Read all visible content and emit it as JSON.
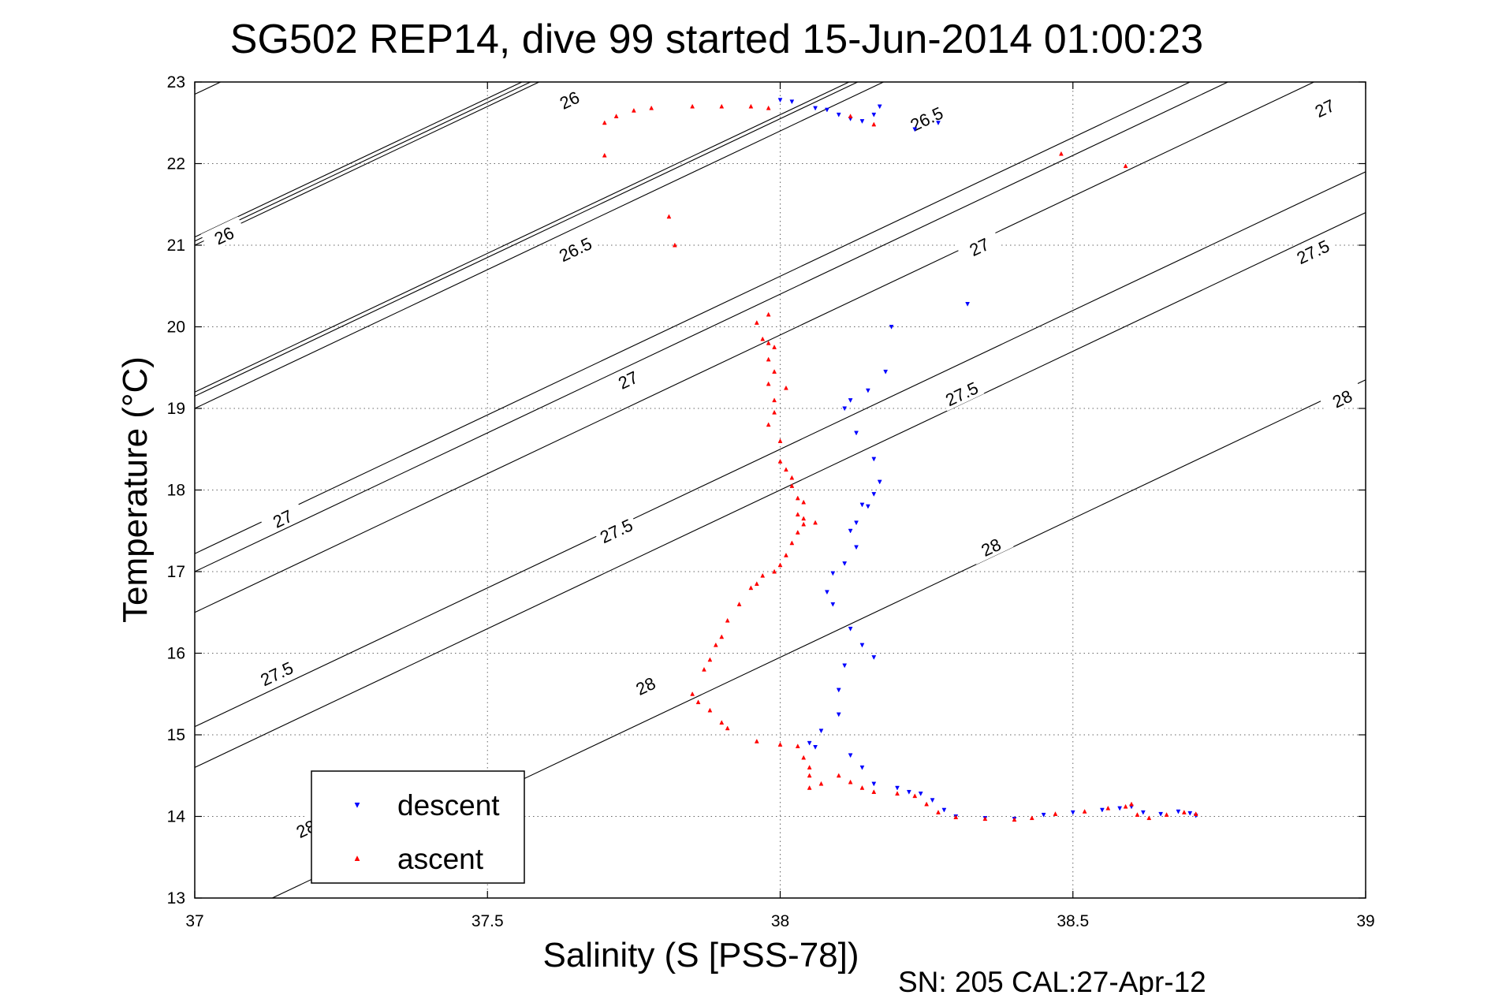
{
  "chart_data": {
    "type": "scatter",
    "title": "SG502 REP14, dive 99 started 15-Jun-2014 01:00:23",
    "xlabel": "Salinity (S [PSS-78])",
    "ylabel": "Temperature (°C)",
    "xlim": [
      37,
      39
    ],
    "ylim": [
      13,
      23
    ],
    "xticks": [
      "37",
      "37.5",
      "38",
      "38.5",
      "39"
    ],
    "yticks": [
      "13",
      "14",
      "15",
      "16",
      "17",
      "18",
      "19",
      "20",
      "21",
      "22",
      "23"
    ],
    "grid": true,
    "legend_position": "bottom-left",
    "footnote": "SN: 205  CAL:27-Apr-12",
    "contours": [
      {
        "value": 26.0,
        "label": "26"
      },
      {
        "value": 26.5,
        "label": "26.5"
      },
      {
        "value": 27.0,
        "label": "27"
      },
      {
        "value": 27.5,
        "label": "27.5"
      },
      {
        "value": 28.0,
        "label": "28"
      }
    ],
    "contour_labels": [
      {
        "text": "26",
        "s": 37.64,
        "t": 22.78
      },
      {
        "text": "26",
        "s": 37.05,
        "t": 21.12
      },
      {
        "text": "26.5",
        "s": 38.25,
        "t": 22.55
      },
      {
        "text": "26.5",
        "s": 37.65,
        "t": 20.95
      },
      {
        "text": "27",
        "s": 38.93,
        "t": 22.68
      },
      {
        "text": "27",
        "s": 38.34,
        "t": 20.98
      },
      {
        "text": "27",
        "s": 37.74,
        "t": 19.35
      },
      {
        "text": "27",
        "s": 37.15,
        "t": 17.65
      },
      {
        "text": "27.5",
        "s": 38.91,
        "t": 20.92
      },
      {
        "text": "27.5",
        "s": 38.31,
        "t": 19.18
      },
      {
        "text": "27.5",
        "s": 37.72,
        "t": 17.5
      },
      {
        "text": "27.5",
        "s": 37.14,
        "t": 15.75
      },
      {
        "text": "28",
        "s": 38.96,
        "t": 19.12
      },
      {
        "text": "28",
        "s": 38.36,
        "t": 17.3
      },
      {
        "text": "28",
        "s": 37.77,
        "t": 15.6
      },
      {
        "text": "28",
        "s": 37.19,
        "t": 13.85
      }
    ],
    "series": [
      {
        "name": "descent",
        "color": "#0000ff",
        "marker": "triangle-down",
        "points": [
          [
            38.0,
            22.78
          ],
          [
            38.02,
            22.76
          ],
          [
            38.06,
            22.68
          ],
          [
            38.08,
            22.66
          ],
          [
            38.1,
            22.6
          ],
          [
            38.12,
            22.55
          ],
          [
            38.14,
            22.52
          ],
          [
            38.16,
            22.6
          ],
          [
            38.17,
            22.7
          ],
          [
            38.23,
            22.42
          ],
          [
            38.27,
            22.5
          ],
          [
            38.32,
            20.28
          ],
          [
            38.19,
            20.0
          ],
          [
            38.18,
            19.45
          ],
          [
            38.15,
            19.22
          ],
          [
            38.12,
            19.1
          ],
          [
            38.11,
            19.0
          ],
          [
            38.13,
            18.7
          ],
          [
            38.16,
            18.38
          ],
          [
            38.17,
            18.1
          ],
          [
            38.16,
            17.95
          ],
          [
            38.15,
            17.8
          ],
          [
            38.14,
            17.82
          ],
          [
            38.13,
            17.6
          ],
          [
            38.12,
            17.5
          ],
          [
            38.13,
            17.3
          ],
          [
            38.11,
            17.1
          ],
          [
            38.09,
            16.98
          ],
          [
            38.08,
            16.75
          ],
          [
            38.09,
            16.6
          ],
          [
            38.12,
            16.3
          ],
          [
            38.14,
            16.1
          ],
          [
            38.16,
            15.95
          ],
          [
            38.11,
            15.85
          ],
          [
            38.1,
            15.55
          ],
          [
            38.1,
            15.25
          ],
          [
            38.07,
            15.05
          ],
          [
            38.05,
            14.9
          ],
          [
            38.06,
            14.85
          ],
          [
            38.12,
            14.75
          ],
          [
            38.14,
            14.6
          ],
          [
            38.16,
            14.4
          ],
          [
            38.2,
            14.35
          ],
          [
            38.22,
            14.3
          ],
          [
            38.24,
            14.28
          ],
          [
            38.26,
            14.2
          ],
          [
            38.28,
            14.08
          ],
          [
            38.3,
            14.0
          ],
          [
            38.35,
            13.98
          ],
          [
            38.4,
            13.97
          ],
          [
            38.45,
            14.02
          ],
          [
            38.5,
            14.05
          ],
          [
            38.55,
            14.08
          ],
          [
            38.58,
            14.1
          ],
          [
            38.6,
            14.12
          ],
          [
            38.62,
            14.05
          ],
          [
            38.65,
            14.03
          ],
          [
            38.68,
            14.06
          ],
          [
            38.7,
            14.04
          ],
          [
            38.71,
            14.01
          ]
        ]
      },
      {
        "name": "ascent",
        "color": "#ff0000",
        "marker": "triangle-up",
        "points": [
          [
            37.7,
            22.1
          ],
          [
            37.7,
            22.5
          ],
          [
            37.72,
            22.58
          ],
          [
            37.75,
            22.65
          ],
          [
            37.78,
            22.68
          ],
          [
            37.85,
            22.7
          ],
          [
            37.9,
            22.7
          ],
          [
            37.95,
            22.7
          ],
          [
            37.98,
            22.68
          ],
          [
            38.12,
            22.58
          ],
          [
            38.16,
            22.48
          ],
          [
            38.48,
            22.12
          ],
          [
            38.59,
            21.97
          ],
          [
            37.81,
            21.35
          ],
          [
            37.82,
            21.0
          ],
          [
            37.98,
            20.15
          ],
          [
            37.96,
            20.05
          ],
          [
            37.97,
            19.85
          ],
          [
            37.98,
            19.8
          ],
          [
            37.99,
            19.75
          ],
          [
            37.98,
            19.6
          ],
          [
            37.99,
            19.45
          ],
          [
            37.98,
            19.3
          ],
          [
            38.01,
            19.25
          ],
          [
            37.99,
            19.1
          ],
          [
            37.99,
            18.95
          ],
          [
            37.98,
            18.8
          ],
          [
            38.0,
            18.6
          ],
          [
            38.0,
            18.35
          ],
          [
            38.01,
            18.25
          ],
          [
            38.02,
            18.15
          ],
          [
            38.02,
            18.05
          ],
          [
            38.03,
            17.9
          ],
          [
            38.04,
            17.85
          ],
          [
            38.03,
            17.7
          ],
          [
            38.04,
            17.65
          ],
          [
            38.04,
            17.58
          ],
          [
            38.06,
            17.6
          ],
          [
            38.03,
            17.48
          ],
          [
            38.02,
            17.35
          ],
          [
            38.01,
            17.2
          ],
          [
            38.0,
            17.08
          ],
          [
            37.99,
            17.0
          ],
          [
            37.97,
            16.95
          ],
          [
            37.96,
            16.85
          ],
          [
            37.95,
            16.8
          ],
          [
            37.93,
            16.6
          ],
          [
            37.91,
            16.4
          ],
          [
            37.9,
            16.2
          ],
          [
            37.89,
            16.1
          ],
          [
            37.88,
            15.92
          ],
          [
            37.87,
            15.8
          ],
          [
            37.85,
            15.5
          ],
          [
            37.86,
            15.4
          ],
          [
            37.88,
            15.3
          ],
          [
            37.9,
            15.15
          ],
          [
            37.91,
            15.08
          ],
          [
            37.96,
            14.92
          ],
          [
            38.0,
            14.88
          ],
          [
            38.03,
            14.86
          ],
          [
            38.04,
            14.72
          ],
          [
            38.05,
            14.6
          ],
          [
            38.05,
            14.5
          ],
          [
            38.05,
            14.35
          ],
          [
            38.07,
            14.4
          ],
          [
            38.1,
            14.5
          ],
          [
            38.12,
            14.42
          ],
          [
            38.14,
            14.35
          ],
          [
            38.16,
            14.3
          ],
          [
            38.2,
            14.28
          ],
          [
            38.23,
            14.25
          ],
          [
            38.25,
            14.15
          ],
          [
            38.27,
            14.05
          ],
          [
            38.3,
            13.99
          ],
          [
            38.35,
            13.97
          ],
          [
            38.4,
            13.96
          ],
          [
            38.43,
            13.98
          ],
          [
            38.47,
            14.03
          ],
          [
            38.52,
            14.06
          ],
          [
            38.56,
            14.1
          ],
          [
            38.59,
            14.12
          ],
          [
            38.6,
            14.15
          ],
          [
            38.61,
            14.02
          ],
          [
            38.63,
            13.98
          ],
          [
            38.66,
            14.02
          ],
          [
            38.69,
            14.05
          ],
          [
            38.71,
            14.03
          ]
        ]
      }
    ]
  }
}
